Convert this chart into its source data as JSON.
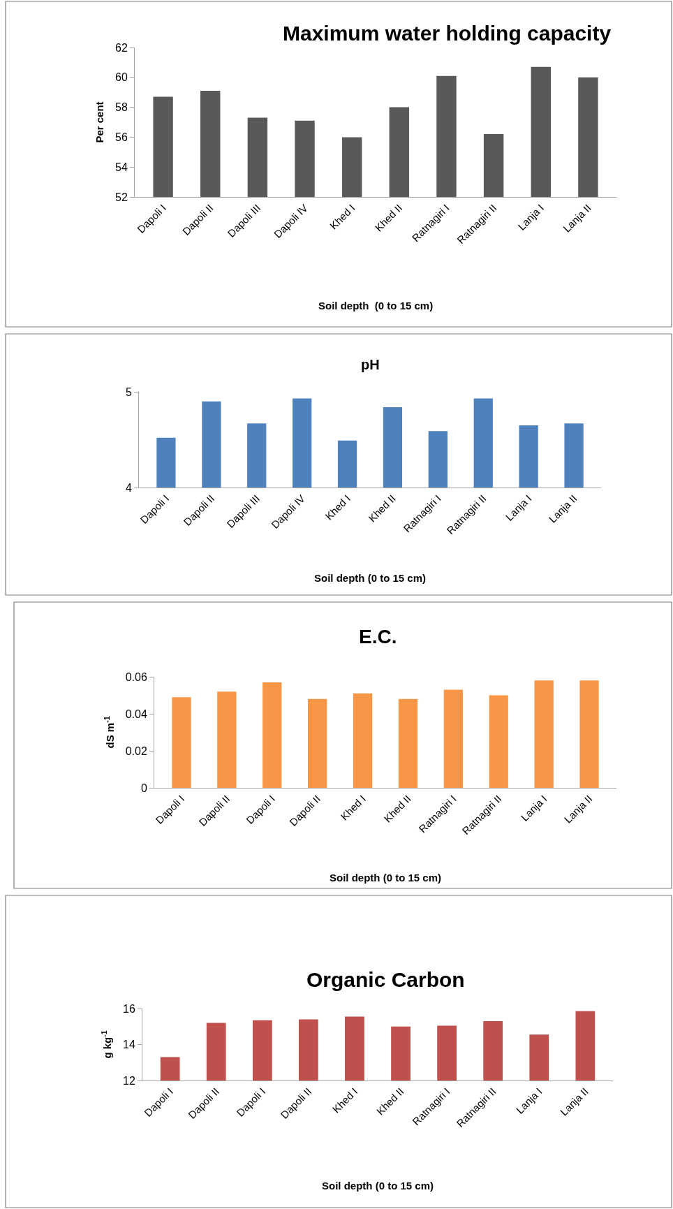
{
  "chart_data": [
    {
      "type": "bar",
      "title": "Maximum water holding capacity",
      "xlabel": "Soil depth  (0 to 15 cm)",
      "ylabel": "Per cent",
      "categories": [
        "Dapoli I",
        "Dapoli II",
        "Dapoli III",
        "Dapoli IV",
        "Khed I",
        "Khed II",
        "Ratnagiri I",
        "Ratnagiri II",
        "Lanja I",
        "Lanja II"
      ],
      "values": [
        58.7,
        59.1,
        57.3,
        57.1,
        56.0,
        58.0,
        60.1,
        56.2,
        60.7,
        60.0
      ],
      "color": "#595959",
      "ylim": [
        52,
        62
      ],
      "yticks": [
        52,
        54,
        56,
        58,
        60,
        62
      ],
      "grid": false
    },
    {
      "type": "bar",
      "title": "pH",
      "xlabel": "Soil depth (0 to 15 cm)",
      "categories": [
        "Dapoli I",
        "Dapoli II",
        "Dapoli III",
        "Dapoli IV",
        "Khed I",
        "Khed II",
        "Ratnagiri I",
        "Ratnagiri II",
        "Lanja I",
        "Lanja II"
      ],
      "values": [
        4.52,
        4.9,
        4.67,
        4.93,
        4.49,
        4.84,
        4.59,
        4.93,
        4.65,
        4.67
      ],
      "color": "#4f81bd",
      "ylim": [
        4,
        5
      ],
      "yticks": [
        4,
        5
      ],
      "grid": false
    },
    {
      "type": "bar",
      "title": "E.C.",
      "xlabel": "Soil depth (0 to 15 cm)",
      "ylabel": "dS m$^{-1}$",
      "categories": [
        "Dapoli I",
        "Dapoli II",
        "Dapoli I",
        "Dapoli II",
        "Khed I",
        "Khed II",
        "Ratnagiri I",
        "Ratnagiri II",
        "Lanja I",
        "Lanja II"
      ],
      "values": [
        0.049,
        0.052,
        0.057,
        0.048,
        0.051,
        0.048,
        0.053,
        0.05,
        0.058,
        0.058
      ],
      "color": "#f79646",
      "ylim": [
        0,
        0.06
      ],
      "yticks": [
        0,
        0.02,
        0.04,
        0.06
      ],
      "grid": false
    },
    {
      "type": "bar",
      "title": "Organic Carbon",
      "xlabel": "Soil depth (0 to 15 cm)",
      "ylabel": "g kg$^{-1}$",
      "categories": [
        "Dapoli I",
        "Dapoli II",
        "Dapoli I",
        "Dapoli II",
        "Khed I",
        "Khed II",
        "Ratnagiri I",
        "Ratnagiri II",
        "Lanja I",
        "Lanja II"
      ],
      "values": [
        13.3,
        15.2,
        15.35,
        15.4,
        15.55,
        15.0,
        15.05,
        15.3,
        14.55,
        15.85
      ],
      "color": "#c0504d",
      "ylim": [
        12,
        16
      ],
      "yticks": [
        12,
        14,
        16
      ],
      "grid": false
    }
  ]
}
